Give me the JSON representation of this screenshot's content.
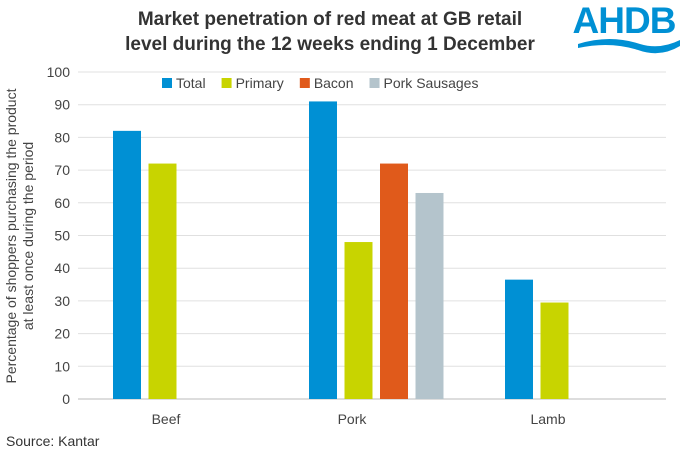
{
  "chart_data": {
    "type": "bar",
    "title": "Market penetration of red meat at GB retail level during the 12 weeks ending 1 December",
    "title_lines": [
      "Market penetration of red meat at GB retail",
      "level during the 12 weeks ending 1 December"
    ],
    "ylabel_lines": [
      "Percentage of shoppers purchasing the product",
      "at least once during the period"
    ],
    "xlabel": "",
    "ylim": [
      0,
      100
    ],
    "yticks": [
      0,
      10,
      20,
      30,
      40,
      50,
      60,
      70,
      80,
      90,
      100
    ],
    "grid": true,
    "legend_position": "top",
    "categories": [
      "Beef",
      "Pork",
      "Lamb"
    ],
    "series": [
      {
        "name": "Total",
        "color": "#0090d4",
        "values": [
          82,
          91,
          36.5
        ]
      },
      {
        "name": "Primary",
        "color": "#c8d400",
        "values": [
          72,
          48,
          29.5
        ]
      },
      {
        "name": "Bacon",
        "color": "#e05a1b",
        "values": [
          null,
          72,
          null
        ]
      },
      {
        "name": "Pork Sausages",
        "color": "#b4c4cc",
        "values": [
          null,
          63,
          null
        ]
      }
    ]
  },
  "logo": "AHDB",
  "source": "Source: Kantar"
}
